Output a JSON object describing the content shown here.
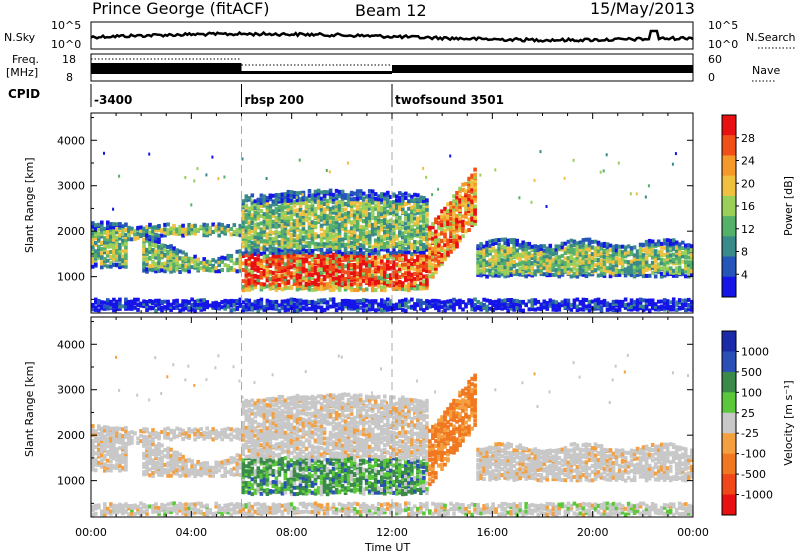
{
  "header": {
    "station": "Prince George (fitACF)",
    "beam": "Beam 12",
    "date": "15/May/2013"
  },
  "top_panels": {
    "nsky_label": "N.Sky",
    "nsky_ticks": [
      "10^5",
      "10^0"
    ],
    "nsearch_label": "N.Search",
    "nsearch_ticks": [
      "10^5",
      "10^0"
    ],
    "freq_label_1": "Freq.",
    "freq_label_2": "[MHz]",
    "freq_ticks": [
      "18",
      "8"
    ],
    "nave_label": "Nave",
    "nave_ticks": [
      "60",
      "0"
    ],
    "cpid_label": "CPID",
    "cpid_segments": [
      {
        "name": "-3400",
        "start": 0
      },
      {
        "name": "rbsp 200",
        "start": 6
      },
      {
        "name": "twofsound 3501",
        "start": 12
      }
    ]
  },
  "chart_data": [
    {
      "type": "heatmap",
      "quantity": "Power",
      "colorbar_label": "Power [dB]",
      "colorbar_ticks": [
        "28",
        "24",
        "20",
        "16",
        "12",
        "8",
        "4"
      ],
      "ylabel": "Slant Range [km]",
      "y_ticks": [
        "4000",
        "3000",
        "2000",
        "1000"
      ],
      "ylim": [
        200,
        4600
      ],
      "xlim": [
        0,
        24
      ],
      "colors": [
        "#1515e8",
        "#2555b8",
        "#3a8a8a",
        "#55b06a",
        "#9ad05a",
        "#f0c040",
        "#f59a2a",
        "#f05018",
        "#e81010"
      ]
    },
    {
      "type": "heatmap",
      "quantity": "Velocity",
      "colorbar_label": "Velocity [m s⁻¹]",
      "colorbar_ticks": [
        "1000",
        "500",
        "100",
        "25",
        "-25",
        "-100",
        "-500",
        "-1000"
      ],
      "ylabel": "Slant Range [km]",
      "y_ticks": [
        "4000",
        "3000",
        "2000",
        "1000"
      ],
      "ylim": [
        200,
        4600
      ],
      "xlim": [
        0,
        24
      ],
      "xlabel": "Time UT",
      "x_ticks": [
        "00:00",
        "04:00",
        "08:00",
        "12:00",
        "16:00",
        "20:00",
        "00:00"
      ],
      "colors": [
        "#1a2aa8",
        "#2a50b8",
        "#3a8a4a",
        "#5ac83a",
        "#c8c8c8",
        "#f5a040",
        "#f07820",
        "#f04818",
        "#e81010"
      ]
    }
  ]
}
